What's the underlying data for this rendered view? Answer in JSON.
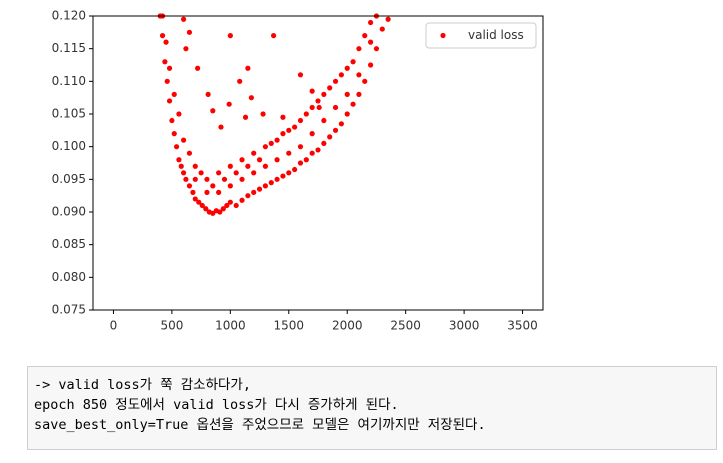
{
  "chart_data": {
    "type": "scatter",
    "series": [
      {
        "name": "valid loss",
        "color": "#ff0000",
        "x": [
          400,
          420,
          440,
          460,
          480,
          500,
          520,
          540,
          560,
          580,
          600,
          620,
          650,
          680,
          700,
          730,
          760,
          790,
          820,
          850,
          880,
          910,
          940,
          970,
          1000,
          1050,
          1100,
          1150,
          1200,
          1250,
          1300,
          1350,
          1400,
          1450,
          1500,
          1550,
          1600,
          1650,
          1700,
          1750,
          1800,
          1850,
          1900,
          1950,
          2000,
          2050,
          2100,
          2150,
          2200,
          2250,
          2300,
          2350,
          420,
          450,
          480,
          520,
          560,
          600,
          650,
          700,
          750,
          800,
          850,
          900,
          950,
          1000,
          1050,
          1100,
          1150,
          1200,
          1250,
          1300,
          1350,
          1400,
          1450,
          1500,
          1550,
          1600,
          1650,
          1700,
          1750,
          1800,
          1850,
          1900,
          1950,
          2000,
          2050,
          2100,
          2150,
          2200,
          2250,
          700,
          800,
          900,
          1000,
          1100,
          1200,
          1300,
          1400,
          1500,
          1600,
          1700,
          1800,
          1900,
          2000,
          2100,
          2200,
          600,
          620,
          650,
          720,
          810,
          850,
          920,
          990,
          1080,
          1130,
          1180,
          1280,
          1370,
          1450,
          1600,
          1700,
          1760,
          1000,
          1150
        ],
        "values": [
          0.12,
          0.117,
          0.113,
          0.11,
          0.107,
          0.104,
          0.102,
          0.1,
          0.098,
          0.097,
          0.096,
          0.095,
          0.094,
          0.093,
          0.092,
          0.0915,
          0.091,
          0.0905,
          0.09,
          0.0898,
          0.0902,
          0.09,
          0.0905,
          0.091,
          0.0915,
          0.091,
          0.0918,
          0.0925,
          0.093,
          0.0935,
          0.094,
          0.0945,
          0.095,
          0.0955,
          0.096,
          0.0965,
          0.0975,
          0.098,
          0.099,
          0.0995,
          0.1005,
          0.1015,
          0.1025,
          0.1035,
          0.105,
          0.1065,
          0.108,
          0.11,
          0.1125,
          0.115,
          0.118,
          0.1195,
          0.12,
          0.116,
          0.112,
          0.108,
          0.105,
          0.101,
          0.099,
          0.097,
          0.096,
          0.095,
          0.094,
          0.096,
          0.095,
          0.097,
          0.096,
          0.098,
          0.097,
          0.099,
          0.098,
          0.1,
          0.1005,
          0.101,
          0.102,
          0.1025,
          0.103,
          0.104,
          0.105,
          0.106,
          0.107,
          0.108,
          0.109,
          0.11,
          0.111,
          0.112,
          0.113,
          0.115,
          0.117,
          0.119,
          0.12,
          0.095,
          0.093,
          0.093,
          0.094,
          0.095,
          0.096,
          0.097,
          0.098,
          0.099,
          0.1,
          0.102,
          0.104,
          0.106,
          0.108,
          0.111,
          0.116,
          0.1195,
          0.115,
          0.1175,
          0.112,
          0.108,
          0.1055,
          0.103,
          0.1065,
          0.11,
          0.1045,
          0.1075,
          0.105,
          0.117,
          0.1045,
          0.111,
          0.1085,
          0.106,
          0.117,
          0.112
        ]
      }
    ],
    "xlim": [
      -175,
      3675
    ],
    "xticks": [
      0,
      500,
      1000,
      1500,
      2000,
      2500,
      3000,
      3500
    ],
    "ylim": [
      0.075,
      0.12
    ],
    "yticks": [
      0.075,
      {
        "value": 0.08,
        "label": "0.080"
      },
      0.085,
      {
        "value": 0.09,
        "label": "0.090"
      },
      0.095,
      {
        "value": 0.1,
        "label": "0.100"
      },
      0.105,
      {
        "value": 0.11,
        "label": "0.110"
      },
      0.115,
      {
        "value": 0.12,
        "label": "0.120"
      }
    ],
    "legend": "upper right"
  },
  "cell": {
    "lines": [
      "-> valid loss가 쭉 감소하다가,",
      "epoch 850 정도에서 valid loss가 다시 증가하게 된다.",
      "save_best_only=True 옵션을 주었으므로 모델은 여기까지만 저장된다."
    ]
  }
}
